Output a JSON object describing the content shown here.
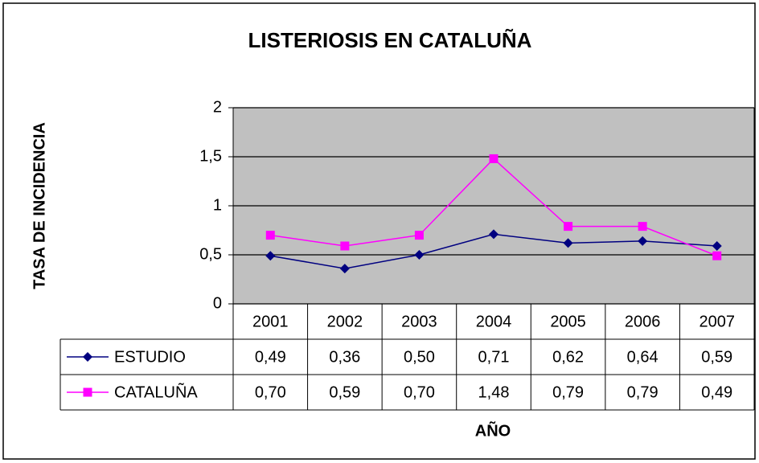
{
  "chart_data": {
    "type": "line",
    "title": "LISTERIOSIS EN CATALUÑA",
    "y_label": "TASA DE INCIDENCIA",
    "x_label": "AÑO",
    "categories": [
      "2001",
      "2002",
      "2003",
      "2004",
      "2005",
      "2006",
      "2007"
    ],
    "series": [
      {
        "name": "ESTUDIO",
        "color": "#000080",
        "marker": "diamond",
        "values": [
          0.49,
          0.36,
          0.5,
          0.71,
          0.62,
          0.64,
          0.59
        ],
        "value_labels": [
          "0,49",
          "0,36",
          "0,50",
          "0,71",
          "0,62",
          "0,64",
          "0,59"
        ]
      },
      {
        "name": "CATALUÑA",
        "color": "#ff00ff",
        "marker": "square",
        "values": [
          0.7,
          0.59,
          0.7,
          1.48,
          0.79,
          0.79,
          0.49
        ],
        "value_labels": [
          "0,70",
          "0,59",
          "0,70",
          "1,48",
          "0,79",
          "0,79",
          "0,49"
        ]
      }
    ],
    "ylim": [
      0,
      2
    ],
    "yticks": [
      0,
      {
        "value": 0.5,
        "label": "0,5"
      },
      1,
      {
        "value": 1.5,
        "label": "1,5"
      },
      2
    ],
    "grid": true,
    "plot_background": "#c0c0c0"
  }
}
